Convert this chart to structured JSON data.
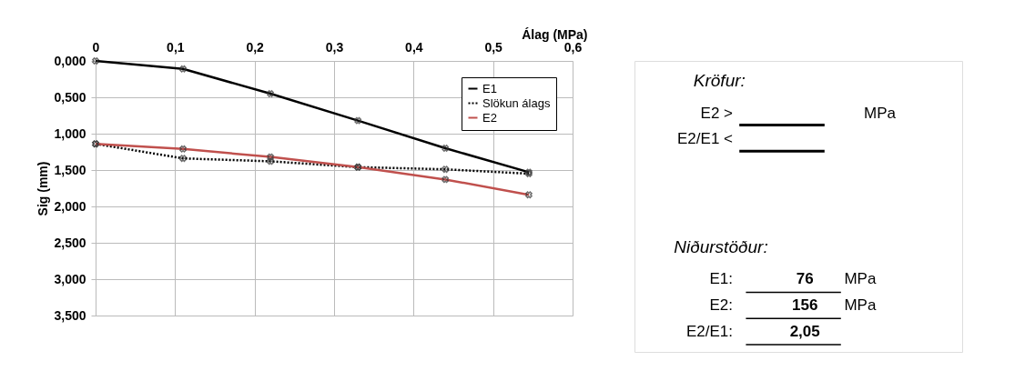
{
  "chart_data": [
    {
      "type": "line",
      "xlabel": "Álag (MPa)",
      "ylabel": "Sig (mm)",
      "x": [
        0,
        0.11,
        0.22,
        0.33,
        0.44,
        0.545
      ],
      "series": [
        {
          "name": "E1",
          "color": "#000000",
          "line_style": "solid",
          "values": [
            0,
            0.11,
            0.45,
            0.82,
            1.2,
            1.53
          ]
        },
        {
          "name": "Slökun álags",
          "color": "#000000",
          "line_style": "dotted",
          "values": [
            1.14,
            1.34,
            1.38,
            1.46,
            1.49,
            1.55
          ]
        },
        {
          "name": "E2",
          "color": "#c0504d",
          "line_style": "solid",
          "values": [
            1.14,
            1.21,
            1.32,
            1.46,
            1.63,
            1.84
          ]
        }
      ],
      "xlim": [
        0,
        0.6
      ],
      "xticks": [
        0,
        {
          "value": 0.1,
          "label": "0,1"
        },
        {
          "value": 0.2,
          "label": "0,2"
        },
        {
          "value": 0.3,
          "label": "0,3"
        },
        {
          "value": 0.4,
          "label": "0,4"
        },
        {
          "value": 0.5,
          "label": "0,5"
        },
        {
          "value": 0.6,
          "label": "0,6"
        }
      ],
      "ylim": [
        3.5,
        0
      ],
      "yticks": [
        {
          "value": 0,
          "label": "0,000"
        },
        {
          "value": 0.5,
          "label": "0,500"
        },
        {
          "value": 1,
          "label": "1,000"
        },
        {
          "value": 1.5,
          "label": "1,500"
        },
        {
          "value": 2,
          "label": "2,000"
        },
        {
          "value": 2.5,
          "label": "2,500"
        },
        {
          "value": 3,
          "label": "3,000"
        },
        {
          "value": 3.5,
          "label": "3,500"
        }
      ],
      "grid": true,
      "legend": "top right",
      "marker": "cross"
    },
    {
      "type": "other",
      "annotations": [
        "Kröfur:",
        "E2 >",
        "MPa",
        "E2/E1 <",
        "Niðurstöður:",
        "E1:",
        "76",
        "MPa",
        "E2:",
        "156",
        "MPa",
        "E2/E1:",
        "2,05"
      ]
    }
  ]
}
